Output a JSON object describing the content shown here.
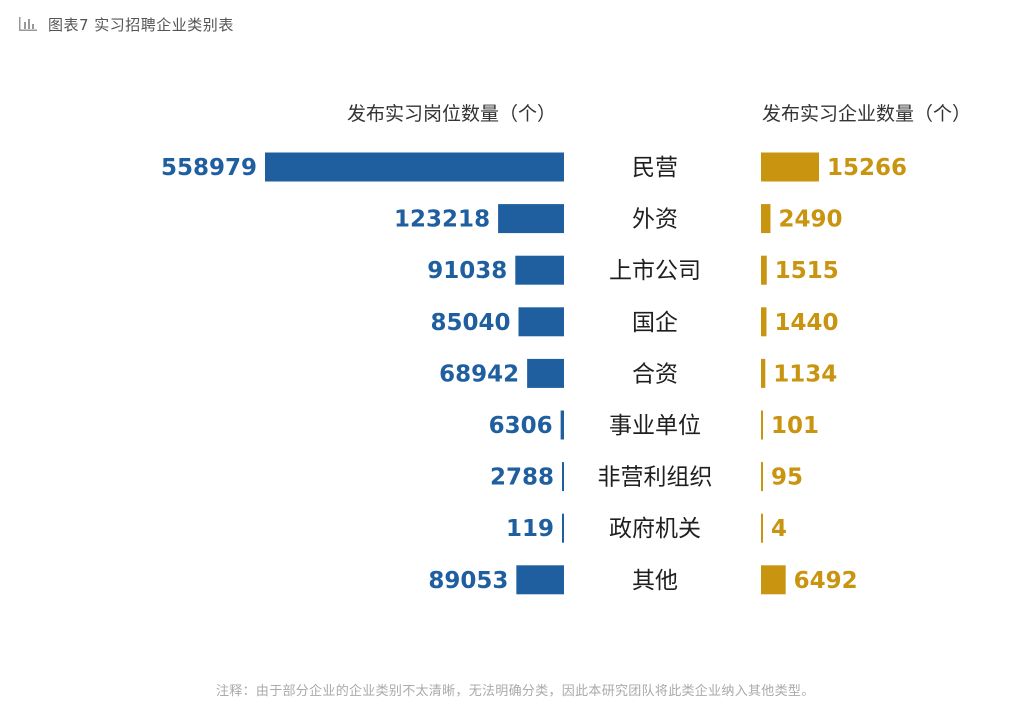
{
  "figure_title": "图表7 实习招聘企业类别表",
  "icons": {
    "title_icon": "bar-chart-icon"
  },
  "colors": {
    "positions": "#1f5f9f",
    "companies": "#c9940f"
  },
  "chart_data": {
    "type": "bar",
    "title": "图表7 实习招聘企业类别表",
    "orientation": "horizontal-butterfly",
    "categories": [
      "民营",
      "外资",
      "上市公司",
      "国企",
      "合资",
      "事业单位",
      "非营利组织",
      "政府机关",
      "其他"
    ],
    "series": [
      {
        "name": "发布实习岗位数量（个）",
        "values": [
          558979,
          123218,
          91038,
          85040,
          68942,
          6306,
          2788,
          119,
          89053
        ],
        "color": "#1f5f9f"
      },
      {
        "name": "发布实习企业数量（个）",
        "values": [
          15266,
          2490,
          1515,
          1440,
          1134,
          101,
          95,
          4,
          6492
        ],
        "color": "#c9940f"
      }
    ],
    "grid": false
  },
  "note": "注释：由于部分企业的企业类别不太清晰，无法明确分类，因此本研究团队将此类企业纳入其他类型。"
}
